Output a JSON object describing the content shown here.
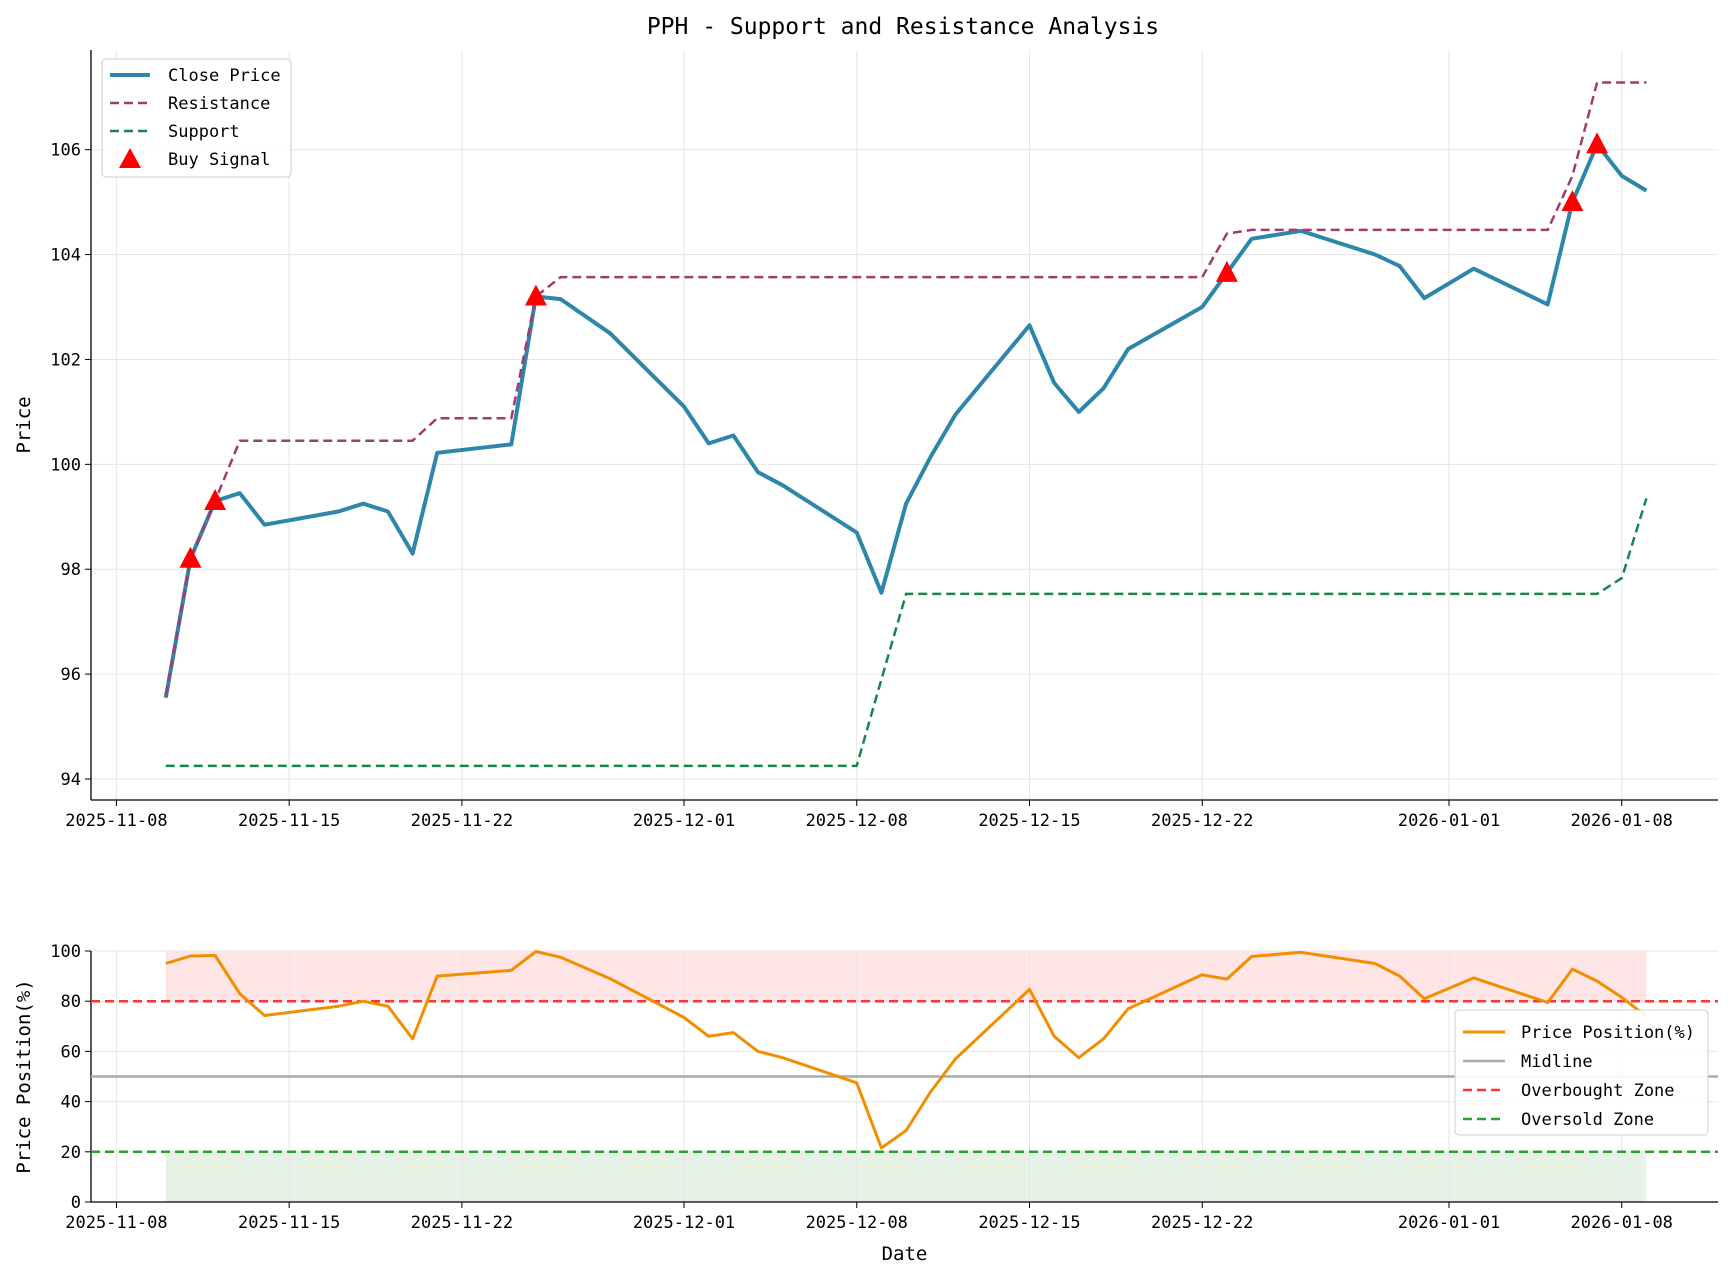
{
  "title": "PPH - Support and Resistance Analysis",
  "colors": {
    "close": "#2E86AB",
    "resistance": "#A23B72",
    "support": "#18864B",
    "buy": "#FF0000",
    "position": "#F18F01",
    "midline": "#AAAAAA",
    "overbought": "#FF3333",
    "oversold": "#2CA02C"
  },
  "chart_data": [
    {
      "type": "line",
      "title": "PPH - Support and Resistance Analysis",
      "xlabel": "",
      "ylabel": "Price",
      "ylim": [
        93.6,
        107.9
      ],
      "yticks": [
        94,
        96,
        98,
        100,
        102,
        104,
        106
      ],
      "xticks": [
        "2025-11-08",
        "2025-11-15",
        "2025-11-22",
        "2025-12-01",
        "2025-12-08",
        "2025-12-15",
        "2025-12-22",
        "2026-01-01",
        "2026-01-08"
      ],
      "grid": true,
      "legend_placement": "upper-left",
      "x": [
        "2025-11-10",
        "2025-11-11",
        "2025-11-12",
        "2025-11-13",
        "2025-11-14",
        "2025-11-17",
        "2025-11-18",
        "2025-11-19",
        "2025-11-20",
        "2025-11-21",
        "2025-11-24",
        "2025-11-25",
        "2025-11-26",
        "2025-11-28",
        "2025-12-01",
        "2025-12-02",
        "2025-12-03",
        "2025-12-04",
        "2025-12-05",
        "2025-12-08",
        "2025-12-09",
        "2025-12-10",
        "2025-12-11",
        "2025-12-12",
        "2025-12-15",
        "2025-12-16",
        "2025-12-17",
        "2025-12-18",
        "2025-12-19",
        "2025-12-22",
        "2025-12-23",
        "2025-12-24",
        "2025-12-26",
        "2025-12-29",
        "2025-12-30",
        "2025-12-31",
        "2026-01-02",
        "2026-01-05",
        "2026-01-06",
        "2026-01-07",
        "2026-01-08",
        "2026-01-09"
      ],
      "series": [
        {
          "name": "Close Price",
          "style": "solid",
          "values": [
            95.55,
            98.2,
            99.3,
            99.45,
            98.85,
            99.1,
            99.25,
            99.1,
            98.3,
            100.22,
            100.38,
            103.2,
            103.15,
            102.5,
            101.1,
            100.4,
            100.55,
            99.85,
            99.6,
            98.7,
            97.55,
            99.25,
            100.15,
            100.95,
            102.65,
            101.55,
            101.0,
            101.45,
            102.2,
            103.0,
            103.65,
            104.3,
            104.45,
            104.0,
            103.78,
            103.17,
            103.73,
            103.05,
            105.0,
            106.1,
            105.5,
            105.22
          ]
        },
        {
          "name": "Resistance",
          "style": "dashed",
          "values": [
            95.6,
            98.2,
            99.3,
            100.45,
            100.45,
            100.45,
            100.45,
            100.45,
            100.45,
            100.88,
            100.88,
            103.2,
            103.57,
            103.57,
            103.57,
            103.57,
            103.57,
            103.57,
            103.57,
            103.57,
            103.57,
            103.57,
            103.57,
            103.57,
            103.57,
            103.57,
            103.57,
            103.57,
            103.57,
            103.57,
            104.4,
            104.47,
            104.47,
            104.47,
            104.47,
            104.47,
            104.47,
            104.47,
            105.5,
            107.28,
            107.28,
            107.28
          ]
        },
        {
          "name": "Support",
          "style": "dashed",
          "values": [
            94.25,
            94.25,
            94.25,
            94.25,
            94.25,
            94.25,
            94.25,
            94.25,
            94.25,
            94.25,
            94.25,
            94.25,
            94.25,
            94.25,
            94.25,
            94.25,
            94.25,
            94.25,
            94.25,
            94.25,
            95.9,
            97.53,
            97.53,
            97.53,
            97.53,
            97.53,
            97.53,
            97.53,
            97.53,
            97.53,
            97.53,
            97.53,
            97.53,
            97.53,
            97.53,
            97.53,
            97.53,
            97.53,
            97.53,
            97.53,
            97.83,
            99.35
          ]
        }
      ],
      "buy_signals": {
        "name": "Buy Signal",
        "x": [
          "2025-11-11",
          "2025-11-12",
          "2025-11-25",
          "2025-12-23",
          "2026-01-06",
          "2026-01-07"
        ],
        "y": [
          98.2,
          99.3,
          103.2,
          103.65,
          105.0,
          106.1
        ]
      }
    },
    {
      "type": "line",
      "xlabel": "Date",
      "ylabel": "Price Position(%)",
      "ylim": [
        0,
        100
      ],
      "yticks": [
        0,
        20,
        40,
        60,
        80,
        100
      ],
      "xticks": [
        "2025-11-08",
        "2025-11-15",
        "2025-11-22",
        "2025-12-01",
        "2025-12-08",
        "2025-12-15",
        "2025-12-22",
        "2026-01-01",
        "2026-01-08"
      ],
      "grid": true,
      "legend_placement": "right",
      "series": [
        {
          "name": "Price Position(%)",
          "values": [
            95,
            98,
            98.2,
            83,
            74.3,
            78,
            80,
            78,
            65,
            90,
            92.3,
            99.8,
            97.5,
            89,
            73.5,
            66,
            67.5,
            60,
            57.5,
            47.5,
            21.5,
            28.5,
            44,
            57,
            84.7,
            66,
            57.5,
            65,
            77,
            90.5,
            88.8,
            97.8,
            99.5,
            95,
            90,
            81,
            89.3,
            79.5,
            92.8,
            88,
            81.5,
            74
          ]
        },
        {
          "name": "Midline",
          "value": 50
        },
        {
          "name": "Overbought Zone",
          "value": 80
        },
        {
          "name": "Oversold Zone",
          "value": 20
        }
      ]
    }
  ]
}
